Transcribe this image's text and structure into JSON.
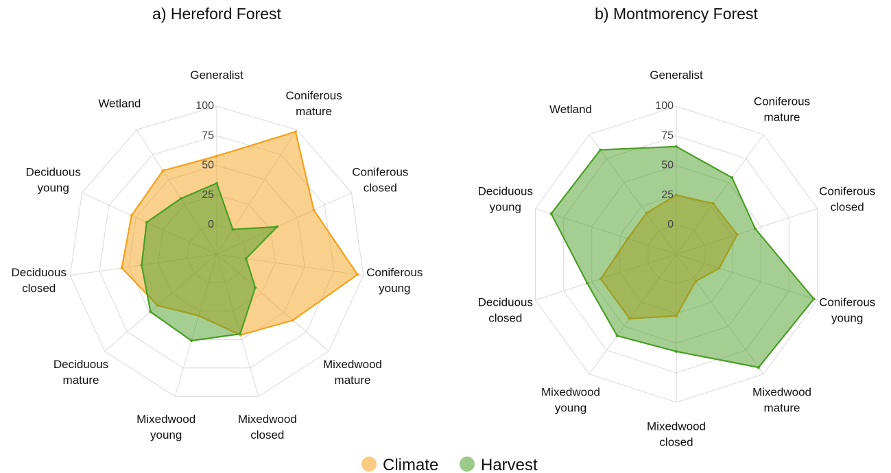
{
  "chart_data": [
    {
      "type": "radar",
      "title": "a) Hereford Forest",
      "categories": [
        "Generalist",
        "Coniferous mature",
        "Coniferous closed",
        "Coniferous young",
        "Mixedwood mature",
        "Mixedwood closed",
        "Mixedwood young",
        "Deciduous mature",
        "Deciduous closed",
        "Deciduous young",
        "Wetland"
      ],
      "series": [
        {
          "name": "Climate",
          "color": "#f5a11c",
          "values": [
            58,
            98,
            65,
            95,
            60,
            46,
            29,
            41,
            56,
            54,
            59
          ]
        },
        {
          "name": "Harvest",
          "color": "#4a9e26",
          "values": [
            35,
            0,
            31,
            0,
            18,
            45,
            51,
            49,
            39,
            40,
            31
          ]
        }
      ],
      "ylim": [
        -25,
        100
      ],
      "yticks": [
        0,
        25,
        50,
        75,
        100
      ],
      "grid": true
    },
    {
      "type": "radar",
      "title": "b) Montmorency Forest",
      "categories": [
        "Generalist",
        "Coniferous mature",
        "Coniferous closed",
        "Coniferous young",
        "Mixedwood mature",
        "Mixedwood closed",
        "Mixedwood young",
        "Deciduous closed",
        "Deciduous young",
        "Wetland"
      ],
      "series": [
        {
          "name": "Climate",
          "color": "#f5a11c",
          "values": [
            25,
            28,
            29,
            13,
            3,
            27,
            42,
            42,
            18,
            18
          ]
        },
        {
          "name": "Harvest",
          "color": "#4a9e26",
          "values": [
            66,
            55,
            45,
            97,
            93,
            57,
            60,
            54,
            86,
            84
          ]
        }
      ],
      "ylim": [
        -25,
        100
      ],
      "yticks": [
        0,
        25,
        50,
        75,
        100
      ],
      "grid": true
    }
  ]
}
